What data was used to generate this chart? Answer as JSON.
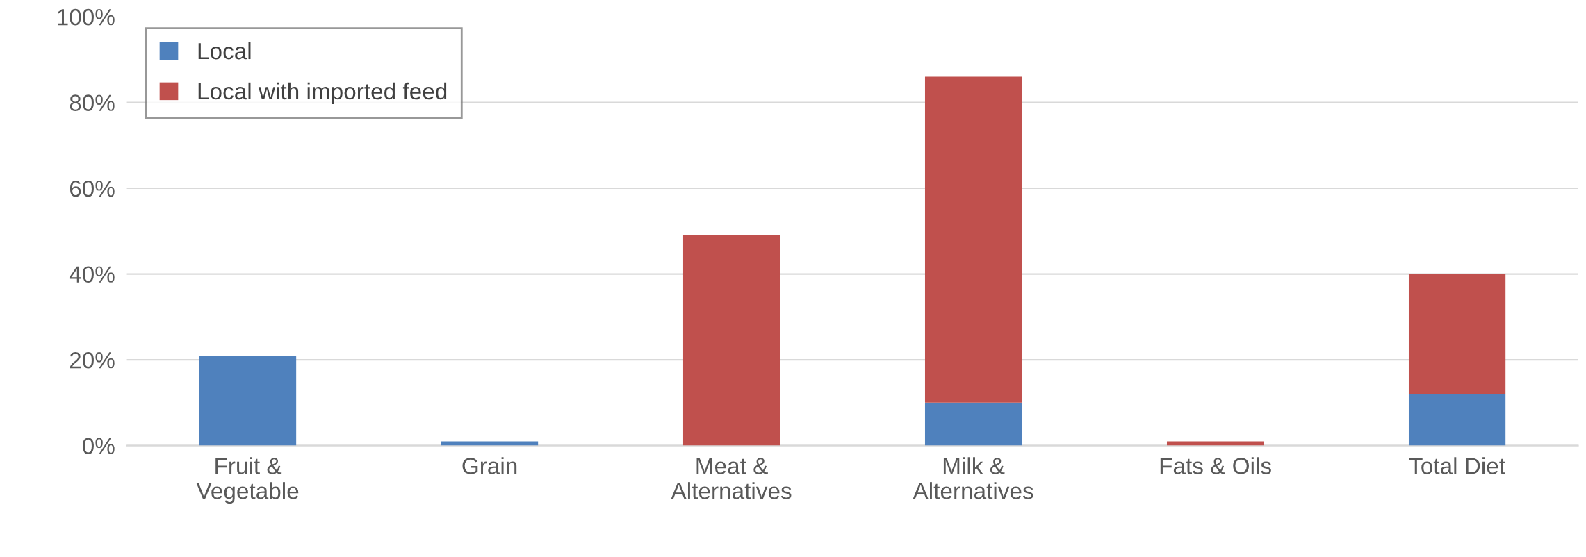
{
  "chart_data": {
    "type": "bar",
    "stacked": true,
    "categories": [
      "Fruit &\nVegetable",
      "Grain",
      "Meat &\nAlternatives",
      "Milk &\nAlternatives",
      "Fats & Oils",
      "Total Diet"
    ],
    "series": [
      {
        "name": "Local",
        "color": "#4f81bd",
        "values": [
          21,
          1,
          0,
          10,
          0,
          12
        ]
      },
      {
        "name": "Local with imported feed",
        "color": "#c0504d",
        "values": [
          0,
          0,
          49,
          76,
          1,
          28
        ]
      }
    ],
    "ylim": [
      0,
      100
    ],
    "yticks": [
      {
        "value": 0,
        "label": "0%"
      },
      {
        "value": 20,
        "label": "20%"
      },
      {
        "value": 40,
        "label": "40%"
      },
      {
        "value": 60,
        "label": "60%"
      },
      {
        "value": 80,
        "label": "80%"
      },
      {
        "value": 100,
        "label": "100%"
      }
    ],
    "grid": "y",
    "legend": "top left"
  }
}
